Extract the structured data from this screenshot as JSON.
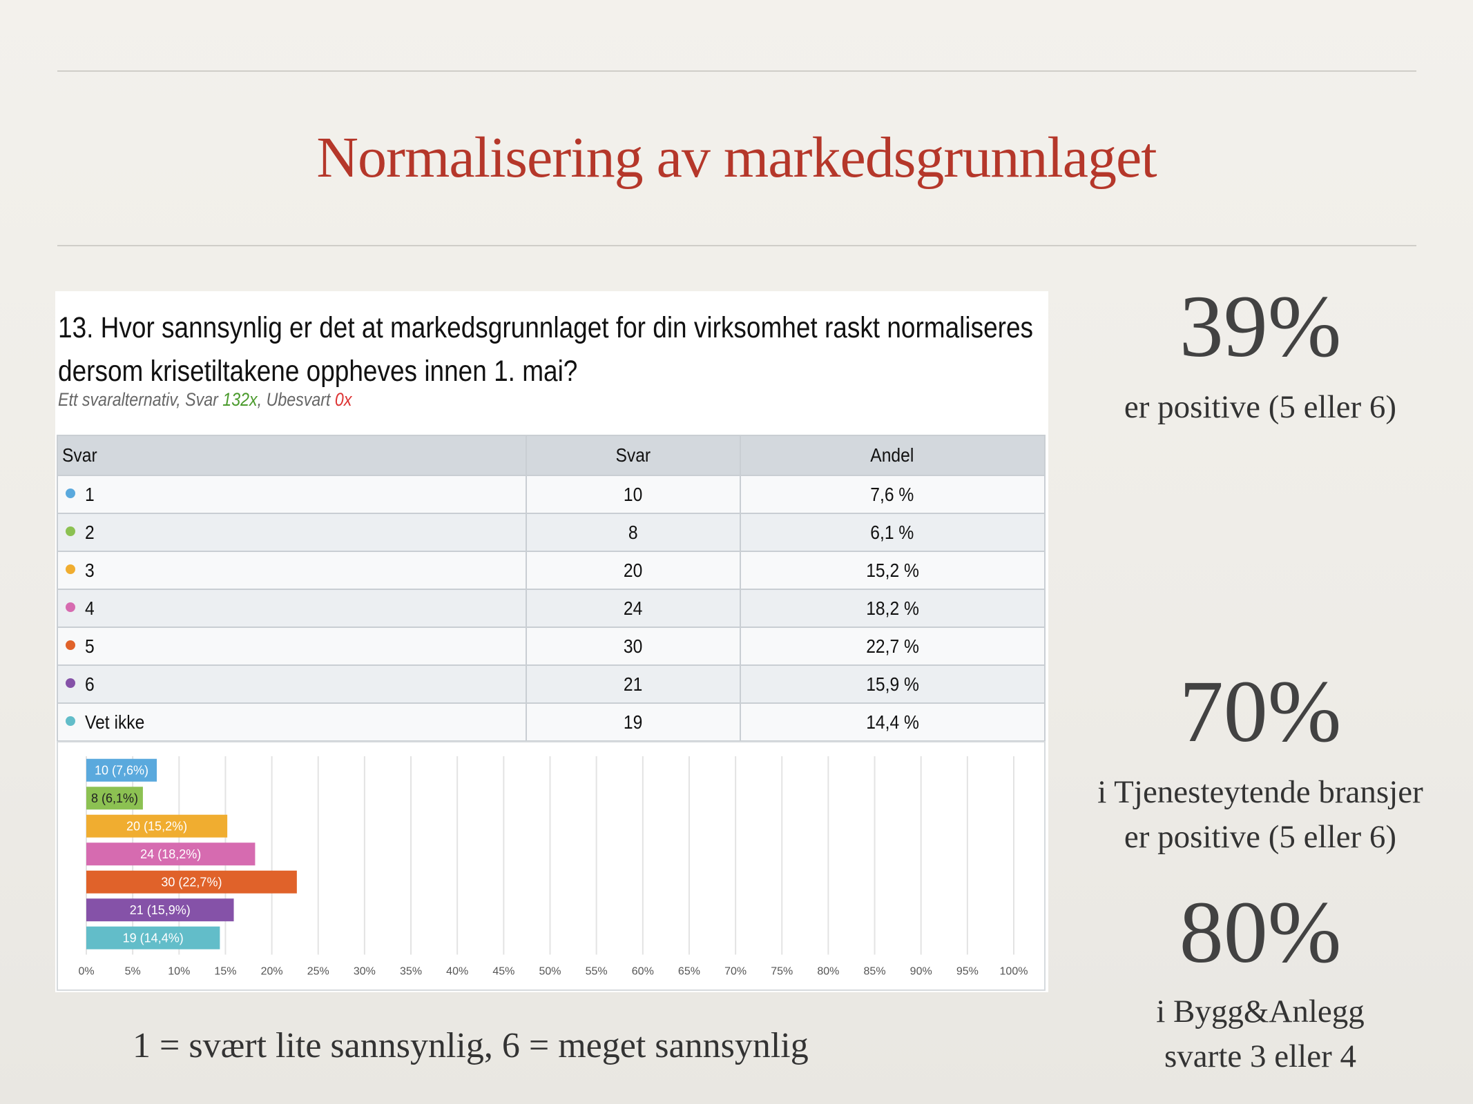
{
  "slide": {
    "title": "Normalisering av markedsgrunnlaget",
    "caption": "1 = svært lite sannsynlig, 6 = meget sannsynlig"
  },
  "question": {
    "title": "13. Hvor sannsynlig er det at markedsgrunnlaget for din virksomhet raskt normaliseres dersom krisetiltakene oppheves innen 1. mai?",
    "meta_prefix": "Ett svaralternativ, Svar ",
    "answered": "132x",
    "meta_mid": ", Ubesvart ",
    "unanswered": "0x"
  },
  "table": {
    "headers": [
      "Svar",
      "Svar",
      "Andel"
    ],
    "rows": [
      {
        "label": "1",
        "count": "10",
        "share": "7,6 %",
        "color": "#5aa9dd"
      },
      {
        "label": "2",
        "count": "8",
        "share": "6,1 %",
        "color": "#8cc152"
      },
      {
        "label": "3",
        "count": "20",
        "share": "15,2 %",
        "color": "#f0ad30"
      },
      {
        "label": "4",
        "count": "24",
        "share": "18,2 %",
        "color": "#d66bb0"
      },
      {
        "label": "5",
        "count": "30",
        "share": "22,7 %",
        "color": "#e0622a"
      },
      {
        "label": "6",
        "count": "21",
        "share": "15,9 %",
        "color": "#8552a8"
      },
      {
        "label": "Vet ikke",
        "count": "19",
        "share": "14,4 %",
        "color": "#62bdc9"
      }
    ]
  },
  "chart_data": {
    "type": "bar",
    "orientation": "horizontal",
    "categories": [
      "1",
      "2",
      "3",
      "4",
      "5",
      "6",
      "Vet ikke"
    ],
    "values": [
      7.6,
      6.1,
      15.2,
      18.2,
      22.7,
      15.9,
      14.4
    ],
    "bar_labels": [
      "10 (7,6%)",
      "8 (6,1%)",
      "20 (15,2%)",
      "24 (18,2%)",
      "30 (22,7%)",
      "21 (15,9%)",
      "19 (14,4%)"
    ],
    "colors": [
      "#5aa9dd",
      "#8cc152",
      "#f0ad30",
      "#d66bb0",
      "#e0622a",
      "#8552a8",
      "#62bdc9"
    ],
    "xticks": [
      "0%",
      "5%",
      "10%",
      "15%",
      "20%",
      "25%",
      "30%",
      "35%",
      "40%",
      "45%",
      "50%",
      "55%",
      "60%",
      "65%",
      "70%",
      "75%",
      "80%",
      "85%",
      "90%",
      "95%",
      "100%"
    ],
    "xlim": [
      0,
      100
    ],
    "grid": true
  },
  "stats": [
    {
      "value": "39%",
      "lines": [
        "er positive (5 eller 6)"
      ]
    },
    {
      "value": "70%",
      "lines": [
        "i Tjenesteytende bransjer",
        "er positive (5 eller 6)"
      ]
    },
    {
      "value": "80%",
      "lines": [
        "i Bygg&Anlegg",
        "svarte 3 eller 4"
      ]
    }
  ]
}
